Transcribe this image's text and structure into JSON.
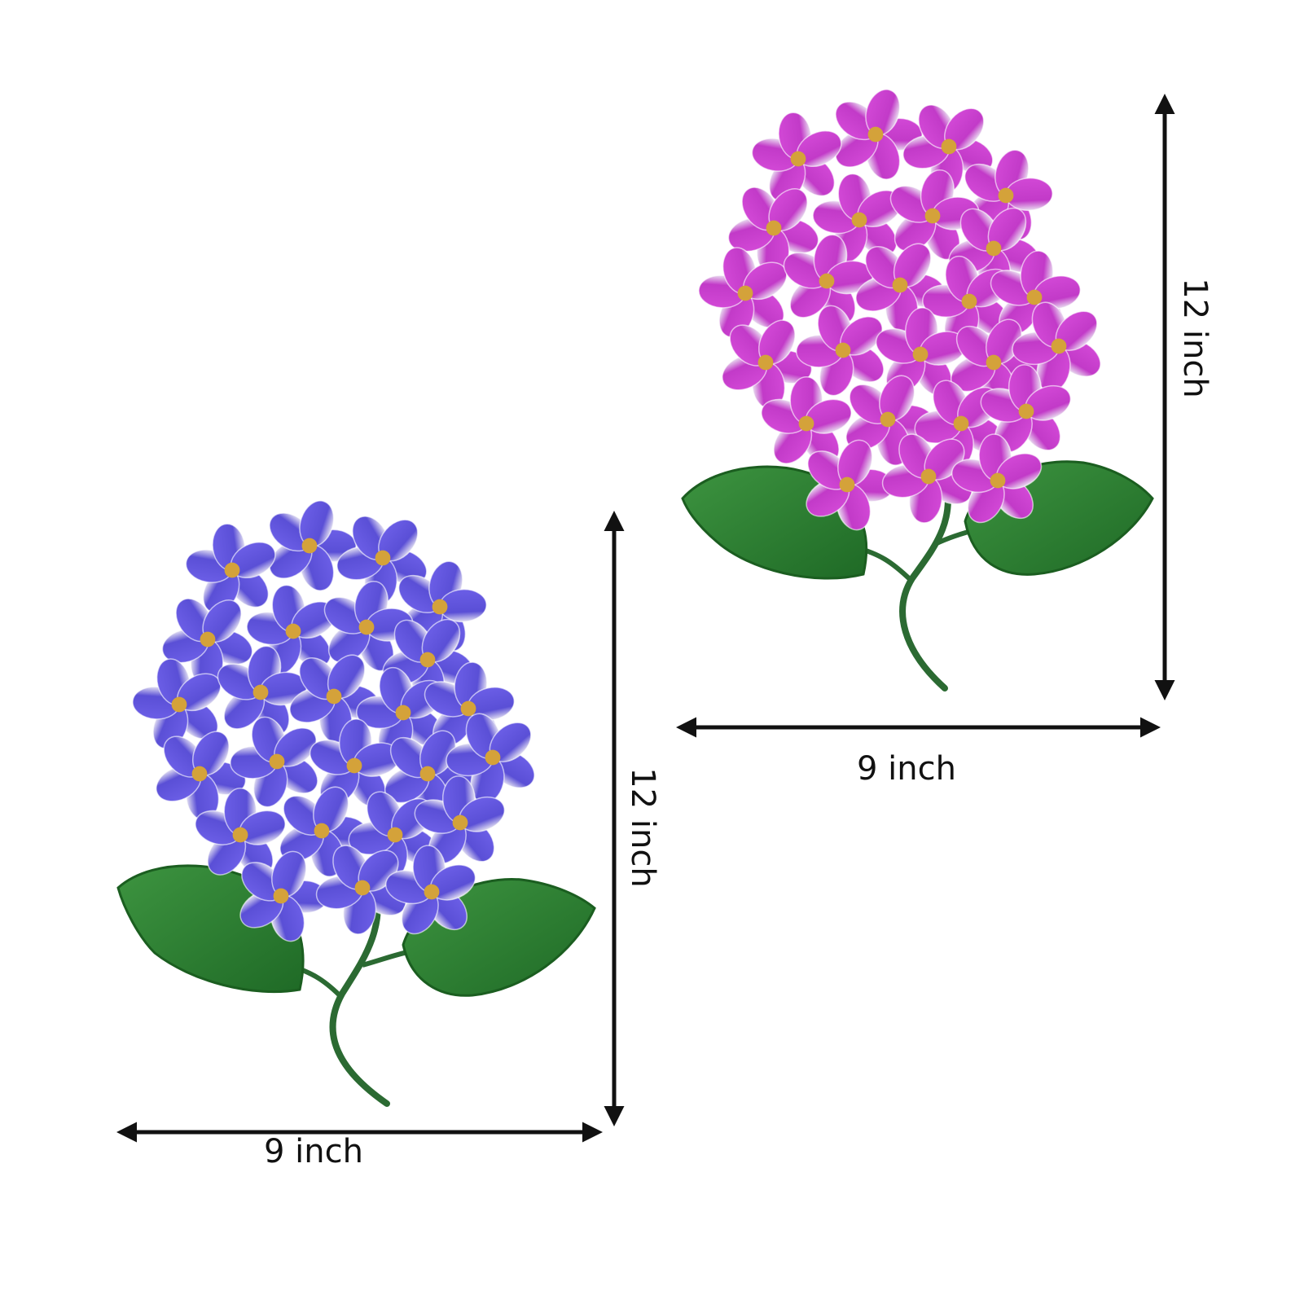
{
  "products": [
    {
      "id": "pink",
      "flower_color": "#c23ac8",
      "height_label": "12 inch",
      "width_label": "9 inch"
    },
    {
      "id": "blue",
      "flower_color": "#5a4fd6",
      "height_label": "12 inch",
      "width_label": "9 inch"
    }
  ],
  "colors": {
    "leaf": "#2e7d32",
    "stem": "#2b6a32",
    "flower_center": "#d4a23a",
    "arrow": "#111111"
  }
}
